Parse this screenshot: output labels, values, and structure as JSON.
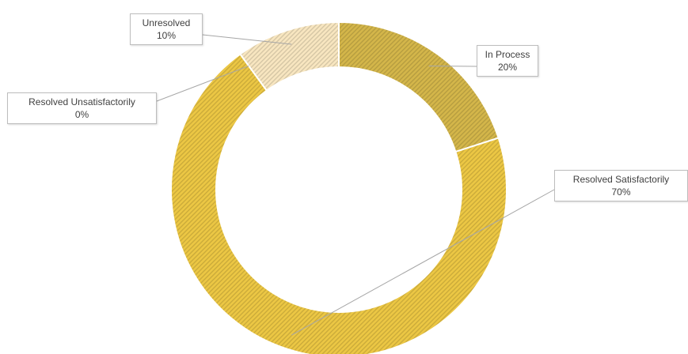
{
  "chart_data": {
    "type": "pie",
    "variant": "doughnut",
    "categories": [
      "In Process",
      "Resolved Satisfactorily",
      "Resolved Unsatisfactorily",
      "Unresolved"
    ],
    "values": [
      20,
      70,
      0,
      10
    ],
    "value_labels": [
      "20%",
      "70%",
      "0%",
      "10%"
    ],
    "colors": [
      "#d4b64a",
      "#ecc744",
      "#f0d776",
      "#f8e6c0"
    ],
    "fill_pattern": "diagonal-hatch",
    "legend": "none",
    "title": ""
  }
}
